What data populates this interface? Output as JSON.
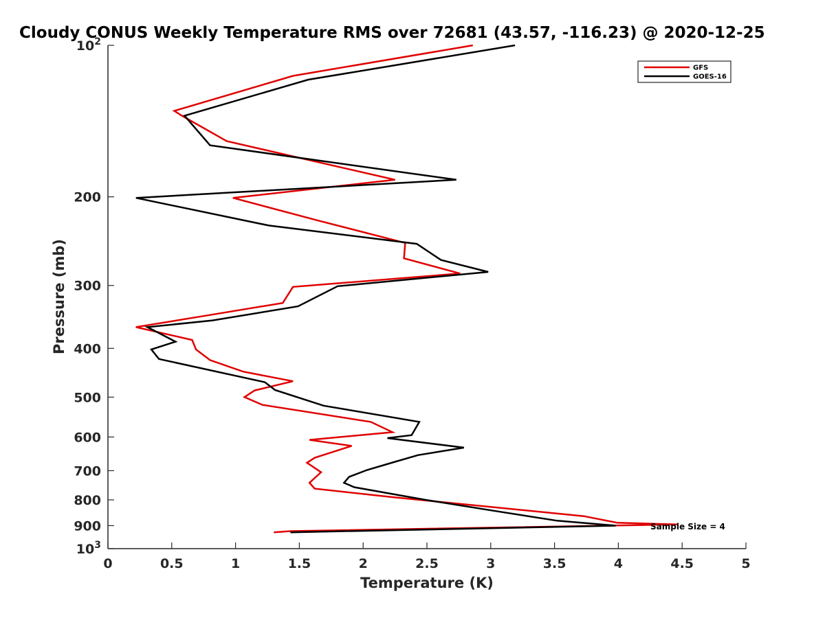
{
  "chart_data": {
    "type": "line",
    "title": "Cloudy CONUS Weekly Temperature RMS over 72681 (43.57, -116.23) @ 2020-12-25",
    "xlabel": "Temperature (K)",
    "ylabel": "Pressure (mb)",
    "xlim": [
      0,
      5
    ],
    "ylim": [
      100,
      1000
    ],
    "y_scale": "log",
    "y_reversed": true,
    "x_ticks": [
      "0",
      "0.5",
      "1",
      "1.5",
      "2",
      "2.5",
      "3",
      "3.5",
      "4",
      "4.5",
      "5"
    ],
    "y_ticks": [
      {
        "value": 100,
        "base": "10",
        "exp": "2"
      },
      {
        "value": 200,
        "label": "200"
      },
      {
        "value": 300,
        "label": "300"
      },
      {
        "value": 400,
        "label": "400"
      },
      {
        "value": 500,
        "label": "500"
      },
      {
        "value": 600,
        "label": "600"
      },
      {
        "value": 700,
        "label": "700"
      },
      {
        "value": 800,
        "label": "800"
      },
      {
        "value": 900,
        "label": "900"
      },
      {
        "value": 1000,
        "base": "10",
        "exp": "3"
      }
    ],
    "grid": false,
    "legend_position": "top-right",
    "series": [
      {
        "name": "GFS",
        "color": "#e00000",
        "points": [
          [
            2.86,
            100
          ],
          [
            1.45,
            115
          ],
          [
            0.52,
            135
          ],
          [
            0.58,
            138
          ],
          [
            0.93,
            155
          ],
          [
            2.25,
            185
          ],
          [
            0.98,
            201
          ],
          [
            1.65,
            223
          ],
          [
            2.33,
            247
          ],
          [
            2.32,
            265
          ],
          [
            2.76,
            284
          ],
          [
            1.45,
            302
          ],
          [
            1.37,
            325
          ],
          [
            0.78,
            344
          ],
          [
            0.22,
            363
          ],
          [
            0.66,
            385
          ],
          [
            0.69,
            402
          ],
          [
            0.8,
            422
          ],
          [
            1.06,
            445
          ],
          [
            1.45,
            465
          ],
          [
            1.15,
            485
          ],
          [
            1.07,
            500
          ],
          [
            1.21,
            518
          ],
          [
            2.06,
            560
          ],
          [
            2.23,
            587
          ],
          [
            1.58,
            608
          ],
          [
            1.91,
            625
          ],
          [
            1.62,
            660
          ],
          [
            1.56,
            675
          ],
          [
            1.67,
            705
          ],
          [
            1.58,
            740
          ],
          [
            1.62,
            760
          ],
          [
            2.23,
            790
          ],
          [
            3.73,
            862
          ],
          [
            3.99,
            888
          ],
          [
            4.46,
            895
          ],
          [
            1.43,
            923
          ],
          [
            1.3,
            928
          ]
        ]
      },
      {
        "name": "GOES-16",
        "color": "#000000",
        "points": [
          [
            3.19,
            100
          ],
          [
            1.57,
            117
          ],
          [
            0.6,
            138
          ],
          [
            0.8,
            158
          ],
          [
            2.73,
            185
          ],
          [
            0.22,
            201
          ],
          [
            1.26,
            228
          ],
          [
            2.42,
            248
          ],
          [
            2.61,
            267
          ],
          [
            2.98,
            282
          ],
          [
            1.8,
            301
          ],
          [
            1.49,
            330
          ],
          [
            0.82,
            352
          ],
          [
            0.31,
            363
          ],
          [
            0.53,
            388
          ],
          [
            0.34,
            402
          ],
          [
            0.4,
            420
          ],
          [
            1.23,
            467
          ],
          [
            1.31,
            484
          ],
          [
            1.69,
            520
          ],
          [
            2.44,
            560
          ],
          [
            2.38,
            595
          ],
          [
            2.19,
            603
          ],
          [
            2.79,
            630
          ],
          [
            2.43,
            652
          ],
          [
            2.25,
            672
          ],
          [
            2.03,
            698
          ],
          [
            1.89,
            720
          ],
          [
            1.85,
            740
          ],
          [
            1.93,
            755
          ],
          [
            2.49,
            800
          ],
          [
            3.04,
            842
          ],
          [
            3.52,
            880
          ],
          [
            3.98,
            900
          ],
          [
            1.43,
            928
          ]
        ]
      }
    ],
    "annotation": "Sample Size = 4"
  }
}
